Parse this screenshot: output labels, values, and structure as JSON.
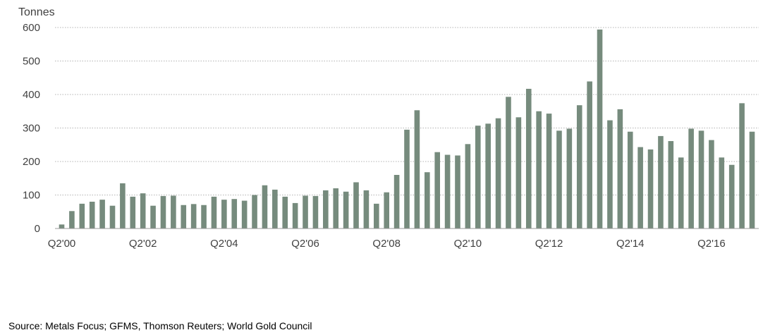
{
  "chart_data": {
    "type": "bar",
    "title": "",
    "ylabel": "Tonnes",
    "xlabel": "",
    "ylim": [
      0,
      600
    ],
    "y_ticks": [
      0,
      100,
      200,
      300,
      400,
      500,
      600
    ],
    "grid": true,
    "bar_color": "#768b7d",
    "x_tick_labels": [
      {
        "index": 0,
        "label": "Q2'00"
      },
      {
        "index": 8,
        "label": "Q2'02"
      },
      {
        "index": 16,
        "label": "Q2'04"
      },
      {
        "index": 24,
        "label": "Q2'06"
      },
      {
        "index": 32,
        "label": "Q2'08"
      },
      {
        "index": 40,
        "label": "Q2'10"
      },
      {
        "index": 48,
        "label": "Q2'12"
      },
      {
        "index": 56,
        "label": "Q2'14"
      },
      {
        "index": 64,
        "label": "Q2'16"
      }
    ],
    "values": [
      12,
      52,
      74,
      80,
      86,
      68,
      135,
      95,
      105,
      68,
      97,
      98,
      70,
      73,
      70,
      95,
      86,
      88,
      83,
      100,
      129,
      116,
      95,
      76,
      98,
      97,
      114,
      120,
      110,
      138,
      114,
      74,
      108,
      160,
      295,
      353,
      168,
      228,
      220,
      218,
      252,
      307,
      313,
      329,
      393,
      332,
      417,
      350,
      343,
      292,
      298,
      368,
      439,
      594,
      323,
      356,
      289,
      243,
      236,
      276,
      261,
      212,
      298,
      292,
      264,
      212,
      190,
      374,
      289
    ]
  },
  "source": "Source: Metals Focus; GFMS, Thomson Reuters; World Gold Council"
}
